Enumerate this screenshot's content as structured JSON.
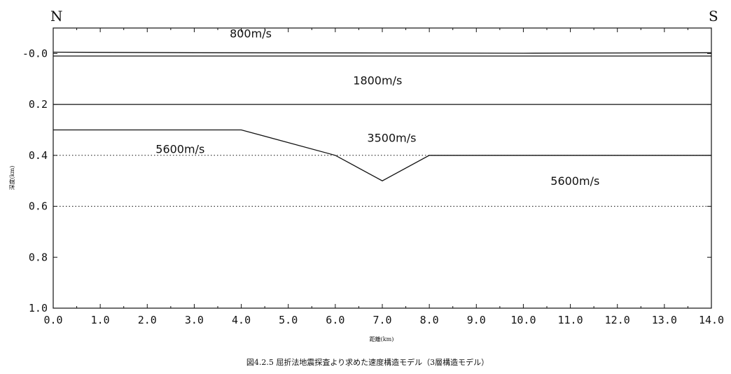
{
  "chart_data": {
    "type": "line",
    "direction_left": "N",
    "direction_right": "S",
    "xlabel": "距離(km)",
    "ylabel": "深度(km)",
    "caption": "図4.2.5 屈折法地震探査より求めた速度構造モデル（3層構造モデル）",
    "xlim": [
      0,
      14
    ],
    "ylim": [
      -0.1,
      1.0
    ],
    "y_inverted": true,
    "x_ticks": [
      "0.0",
      "1.0",
      "2.0",
      "3.0",
      "4.0",
      "5.0",
      "6.0",
      "7.0",
      "8.0",
      "9.0",
      "10.0",
      "11.0",
      "12.0",
      "13.0",
      "14.0"
    ],
    "x_tick_values": [
      0,
      1,
      2,
      3,
      4,
      5,
      6,
      7,
      8,
      9,
      10,
      11,
      12,
      13,
      14
    ],
    "y_ticks": [
      "-0.0",
      "0.2",
      "0.4",
      "0.6",
      "0.8",
      "1.0"
    ],
    "y_tick_values": [
      0,
      0.2,
      0.4,
      0.6,
      0.8,
      1.0
    ],
    "series": [
      {
        "style": "solid",
        "x": [
          0,
          3,
          7,
          10,
          14
        ],
        "y": [
          -0.005,
          -0.003,
          -0.002,
          -0.001,
          -0.003
        ]
      },
      {
        "style": "solid",
        "x": [
          0,
          14
        ],
        "y": [
          0.01,
          0.01
        ]
      },
      {
        "style": "solid",
        "x": [
          0,
          14
        ],
        "y": [
          0.2,
          0.2
        ]
      },
      {
        "style": "solid",
        "x": [
          0,
          4,
          6,
          7,
          8,
          14
        ],
        "y": [
          0.3,
          0.3,
          0.4,
          0.5,
          0.4,
          0.4
        ]
      },
      {
        "style": "dotted",
        "x": [
          0,
          14
        ],
        "y": [
          0.4,
          0.4
        ]
      },
      {
        "style": "dotted",
        "x": [
          0,
          14
        ],
        "y": [
          0.6,
          0.6
        ]
      }
    ],
    "annotations": [
      {
        "text": "800m/s",
        "x": 4.2,
        "y": -0.08
      },
      {
        "text": "1800m/s",
        "x": 6.9,
        "y": 0.105
      },
      {
        "text": "3500m/s",
        "x": 7.2,
        "y": 0.33
      },
      {
        "text": "5600m/s",
        "x": 2.7,
        "y": 0.375
      },
      {
        "text": "5600m/s",
        "x": 11.1,
        "y": 0.5
      }
    ]
  }
}
